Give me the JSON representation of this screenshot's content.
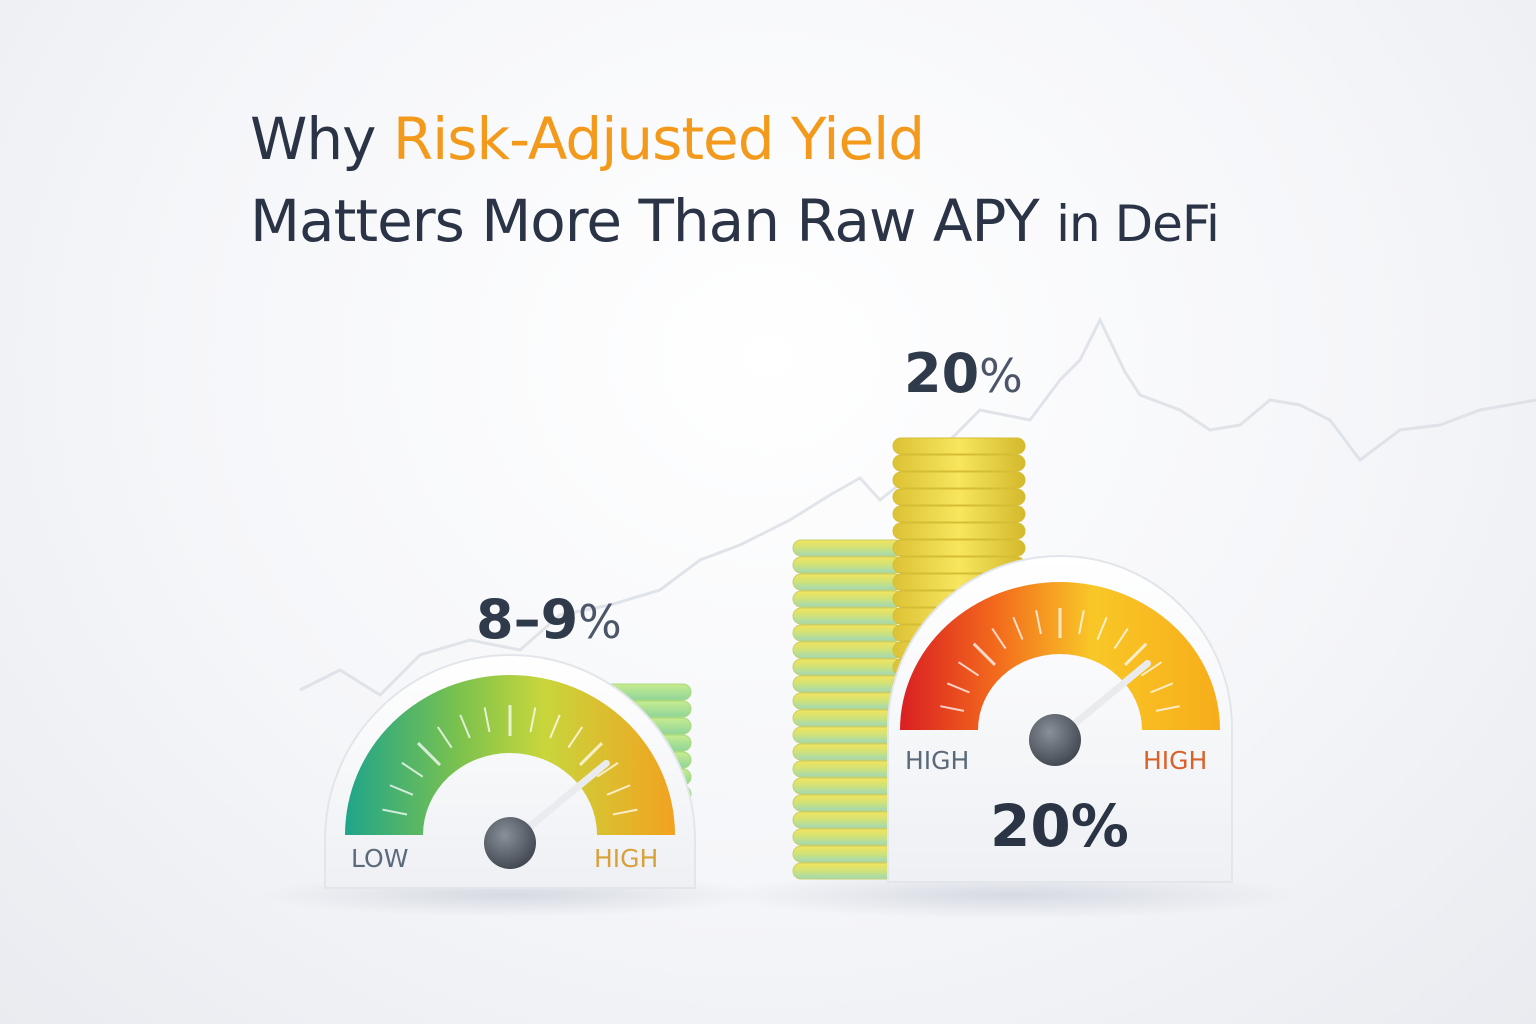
{
  "title": {
    "line1_prefix": "Why",
    "line1_accent": "Risk-Adjusted Yield",
    "line2_main": "Matters More Than Raw APY",
    "line2_suffix": "in DeFi"
  },
  "left_panel": {
    "yield_label": "8–9",
    "yield_symbol": "%",
    "gauge_low_label": "LOW",
    "gauge_high_label": "HIGH",
    "needle_level": 0.78
  },
  "right_panel": {
    "stack_label": "20",
    "stack_symbol": "%",
    "gauge_left_label": "HIGH",
    "gauge_right_label": "HIGH",
    "gauge_value": "20%",
    "needle_level": 0.78
  },
  "colors": {
    "title_text": "#2b3446",
    "title_accent": "#f39a1c",
    "low_label": "#5a6a7a",
    "high_label_left": "#d8a23a",
    "high_label_right_left": "#5a6a7a",
    "high_label_right_right": "#d9622b"
  }
}
